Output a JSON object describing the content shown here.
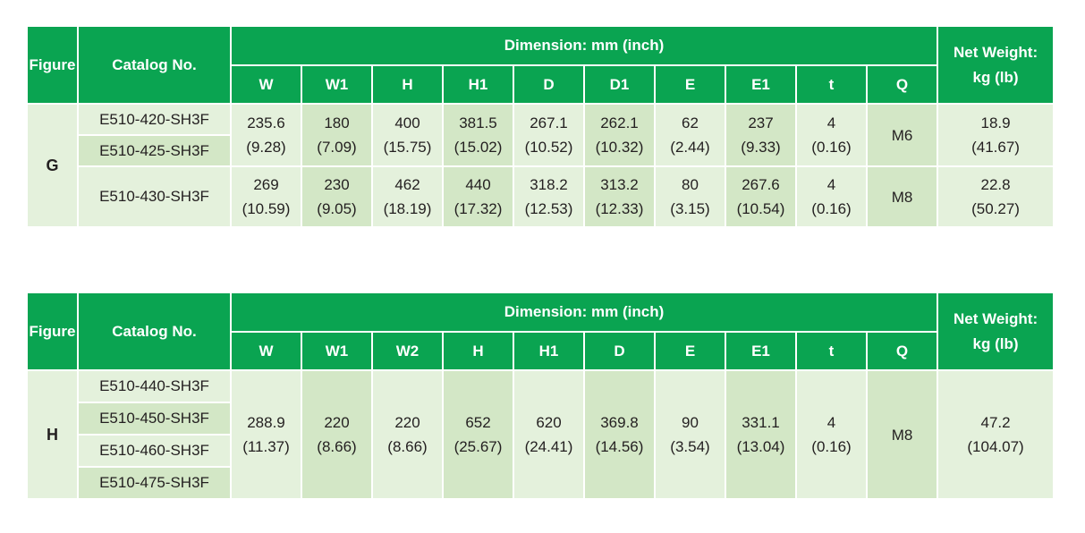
{
  "tables": [
    {
      "figure_header": "Figure",
      "catalog_header": "Catalog No.",
      "dimension_header": "Dimension: mm (inch)",
      "weight_header_1": "Net Weight:",
      "weight_header_2": "kg (lb)",
      "columns": [
        "W",
        "W1",
        "H",
        "H1",
        "D",
        "D1",
        "E",
        "E1",
        "t",
        "Q"
      ],
      "figure": "G",
      "catalogs": [
        "E510-420-SH3F",
        "E510-425-SH3F",
        "E510-430-SH3F"
      ],
      "groups": [
        {
          "values": [
            [
              "235.6",
              "(9.28)"
            ],
            [
              "180",
              "(7.09)"
            ],
            [
              "400",
              "(15.75)"
            ],
            [
              "381.5",
              "(15.02)"
            ],
            [
              "267.1",
              "(10.52)"
            ],
            [
              "262.1",
              "(10.32)"
            ],
            [
              "62",
              "(2.44)"
            ],
            [
              "237",
              "(9.33)"
            ],
            [
              "4",
              "(0.16)"
            ],
            [
              "M6",
              ""
            ]
          ],
          "weight": [
            "18.9",
            "(41.67)"
          ]
        },
        {
          "values": [
            [
              "269",
              "(10.59)"
            ],
            [
              "230",
              "(9.05)"
            ],
            [
              "462",
              "(18.19)"
            ],
            [
              "440",
              "(17.32)"
            ],
            [
              "318.2",
              "(12.53)"
            ],
            [
              "313.2",
              "(12.33)"
            ],
            [
              "80",
              "(3.15)"
            ],
            [
              "267.6",
              "(10.54)"
            ],
            [
              "4",
              "(0.16)"
            ],
            [
              "M8",
              ""
            ]
          ],
          "weight": [
            "22.8",
            "(50.27)"
          ]
        }
      ]
    },
    {
      "figure_header": "Figure",
      "catalog_header": "Catalog No.",
      "dimension_header": "Dimension: mm (inch)",
      "weight_header_1": "Net Weight:",
      "weight_header_2": "kg (lb)",
      "columns": [
        "W",
        "W1",
        "W2",
        "H",
        "H1",
        "D",
        "E",
        "E1",
        "t",
        "Q"
      ],
      "figure": "H",
      "catalogs": [
        "E510-440-SH3F",
        "E510-450-SH3F",
        "E510-460-SH3F",
        "E510-475-SH3F"
      ],
      "groups": [
        {
          "values": [
            [
              "288.9",
              "(11.37)"
            ],
            [
              "220",
              "(8.66)"
            ],
            [
              "220",
              "(8.66)"
            ],
            [
              "652",
              "(25.67)"
            ],
            [
              "620",
              "(24.41)"
            ],
            [
              "369.8",
              "(14.56)"
            ],
            [
              "90",
              "(3.54)"
            ],
            [
              "331.1",
              "(13.04)"
            ],
            [
              "4",
              "(0.16)"
            ],
            [
              "M8",
              ""
            ]
          ],
          "weight": [
            "47.2",
            "(104.07)"
          ]
        }
      ]
    }
  ]
}
